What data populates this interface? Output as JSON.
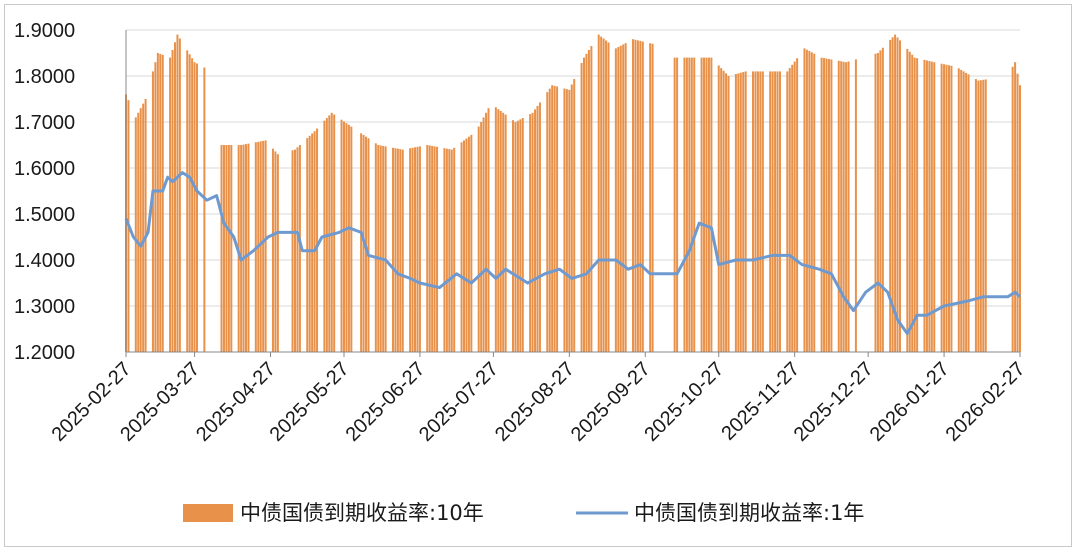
{
  "chart_data": {
    "type": "bar+line",
    "title": "",
    "xlabel": "",
    "ylabel": "",
    "ylim": [
      1.2,
      1.9
    ],
    "y_ticks": [
      "1.2000",
      "1.3000",
      "1.4000",
      "1.5000",
      "1.6000",
      "1.7000",
      "1.8000",
      "1.9000"
    ],
    "x_ticks": [
      "2025-02-27",
      "2025-03-27",
      "2025-04-27",
      "2025-05-27",
      "2025-06-27",
      "2025-07-27",
      "2025-08-27",
      "2025-09-27",
      "2025-10-27",
      "2025-11-27",
      "2025-12-27",
      "2026-01-27",
      "2026-02-27"
    ],
    "grid": "horizontal",
    "legend_position": "bottom",
    "colors": {
      "bar": "#E8914A",
      "line": "#6E9ACF",
      "grid": "#d9d9d9",
      "axis": "#888888"
    },
    "series": [
      {
        "name": "中债国债到期收益率:10年",
        "kind": "bar",
        "anchors": [
          [
            "2025-02-27",
            1.76
          ],
          [
            "2025-03-03",
            1.71
          ],
          [
            "2025-03-07",
            1.75
          ],
          [
            "2025-03-12",
            1.85
          ],
          [
            "2025-03-17",
            1.84
          ],
          [
            "2025-03-20",
            1.89
          ],
          [
            "2025-03-27",
            1.83
          ],
          [
            "2025-04-03",
            1.81
          ],
          [
            "2025-04-07",
            1.65
          ],
          [
            "2025-04-15",
            1.65
          ],
          [
            "2025-04-25",
            1.66
          ],
          [
            "2025-04-30",
            1.63
          ],
          [
            "2025-05-07",
            1.64
          ],
          [
            "2025-05-15",
            1.68
          ],
          [
            "2025-05-22",
            1.72
          ],
          [
            "2025-05-30",
            1.69
          ],
          [
            "2025-06-10",
            1.65
          ],
          [
            "2025-06-20",
            1.64
          ],
          [
            "2025-06-30",
            1.65
          ],
          [
            "2025-07-10",
            1.64
          ],
          [
            "2025-07-20",
            1.68
          ],
          [
            "2025-07-26",
            1.74
          ],
          [
            "2025-08-05",
            1.7
          ],
          [
            "2025-08-12",
            1.72
          ],
          [
            "2025-08-20",
            1.78
          ],
          [
            "2025-08-27",
            1.77
          ],
          [
            "2025-09-02",
            1.84
          ],
          [
            "2025-09-08",
            1.89
          ],
          [
            "2025-09-15",
            1.86
          ],
          [
            "2025-09-22",
            1.88
          ],
          [
            "2025-09-30",
            1.87
          ],
          [
            "2025-10-09",
            1.84
          ],
          [
            "2025-10-17",
            1.84
          ],
          [
            "2025-10-24",
            1.84
          ],
          [
            "2025-10-31",
            1.8
          ],
          [
            "2025-11-07",
            1.81
          ],
          [
            "2025-11-17",
            1.81
          ],
          [
            "2025-11-24",
            1.81
          ],
          [
            "2025-12-01",
            1.86
          ],
          [
            "2025-12-08",
            1.84
          ],
          [
            "2025-12-18",
            1.83
          ],
          [
            "2025-12-31",
            1.85
          ],
          [
            "2026-01-07",
            1.89
          ],
          [
            "2026-01-15",
            1.84
          ],
          [
            "2026-01-23",
            1.83
          ],
          [
            "2026-02-01",
            1.82
          ],
          [
            "2026-02-10",
            1.79
          ],
          [
            "2026-02-22",
            1.8
          ],
          [
            "2026-02-25",
            1.83
          ],
          [
            "2026-02-27",
            1.78
          ]
        ],
        "gaps": [
          [
            "2025-04-01",
            "2025-04-06"
          ],
          [
            "2025-05-01",
            "2025-05-05"
          ],
          [
            "2025-05-31",
            "2025-06-02"
          ],
          [
            "2025-10-01",
            "2025-10-08"
          ],
          [
            "2025-12-23",
            "2025-12-29"
          ],
          [
            "2026-02-14",
            "2026-02-23"
          ]
        ]
      },
      {
        "name": "中债国债到期收益率:1年",
        "kind": "line",
        "anchors": [
          [
            "2025-02-27",
            1.49
          ],
          [
            "2025-03-02",
            1.45
          ],
          [
            "2025-03-05",
            1.43
          ],
          [
            "2025-03-08",
            1.46
          ],
          [
            "2025-03-10",
            1.55
          ],
          [
            "2025-03-14",
            1.55
          ],
          [
            "2025-03-16",
            1.58
          ],
          [
            "2025-03-18",
            1.57
          ],
          [
            "2025-03-22",
            1.59
          ],
          [
            "2025-03-25",
            1.58
          ],
          [
            "2025-03-28",
            1.55
          ],
          [
            "2025-04-01",
            1.53
          ],
          [
            "2025-04-05",
            1.54
          ],
          [
            "2025-04-08",
            1.48
          ],
          [
            "2025-04-12",
            1.45
          ],
          [
            "2025-04-15",
            1.4
          ],
          [
            "2025-04-20",
            1.42
          ],
          [
            "2025-04-26",
            1.45
          ],
          [
            "2025-04-30",
            1.46
          ],
          [
            "2025-05-08",
            1.46
          ],
          [
            "2025-05-10",
            1.42
          ],
          [
            "2025-05-15",
            1.42
          ],
          [
            "2025-05-18",
            1.45
          ],
          [
            "2025-05-25",
            1.46
          ],
          [
            "2025-05-29",
            1.47
          ],
          [
            "2025-06-03",
            1.46
          ],
          [
            "2025-06-06",
            1.41
          ],
          [
            "2025-06-13",
            1.4
          ],
          [
            "2025-06-18",
            1.37
          ],
          [
            "2025-06-23",
            1.36
          ],
          [
            "2025-06-27",
            1.35
          ],
          [
            "2025-07-05",
            1.34
          ],
          [
            "2025-07-12",
            1.37
          ],
          [
            "2025-07-18",
            1.35
          ],
          [
            "2025-07-24",
            1.38
          ],
          [
            "2025-07-28",
            1.36
          ],
          [
            "2025-08-01",
            1.38
          ],
          [
            "2025-08-10",
            1.35
          ],
          [
            "2025-08-17",
            1.37
          ],
          [
            "2025-08-23",
            1.38
          ],
          [
            "2025-08-28",
            1.36
          ],
          [
            "2025-09-03",
            1.37
          ],
          [
            "2025-09-08",
            1.4
          ],
          [
            "2025-09-15",
            1.4
          ],
          [
            "2025-09-20",
            1.38
          ],
          [
            "2025-09-25",
            1.39
          ],
          [
            "2025-09-29",
            1.37
          ],
          [
            "2025-10-10",
            1.37
          ],
          [
            "2025-10-15",
            1.42
          ],
          [
            "2025-10-19",
            1.48
          ],
          [
            "2025-10-24",
            1.47
          ],
          [
            "2025-10-27",
            1.39
          ],
          [
            "2025-11-03",
            1.4
          ],
          [
            "2025-11-10",
            1.4
          ],
          [
            "2025-11-18",
            1.41
          ],
          [
            "2025-11-25",
            1.41
          ],
          [
            "2025-11-30",
            1.39
          ],
          [
            "2025-12-07",
            1.38
          ],
          [
            "2025-12-12",
            1.37
          ],
          [
            "2025-12-17",
            1.32
          ],
          [
            "2025-12-21",
            1.29
          ],
          [
            "2025-12-26",
            1.33
          ],
          [
            "2025-12-31",
            1.35
          ],
          [
            "2026-01-04",
            1.33
          ],
          [
            "2026-01-08",
            1.27
          ],
          [
            "2026-01-12",
            1.24
          ],
          [
            "2026-01-16",
            1.28
          ],
          [
            "2026-01-20",
            1.28
          ],
          [
            "2026-01-27",
            1.3
          ],
          [
            "2026-02-05",
            1.31
          ],
          [
            "2026-02-12",
            1.32
          ],
          [
            "2026-02-22",
            1.32
          ],
          [
            "2026-02-25",
            1.33
          ],
          [
            "2026-02-27",
            1.32
          ]
        ]
      }
    ]
  }
}
